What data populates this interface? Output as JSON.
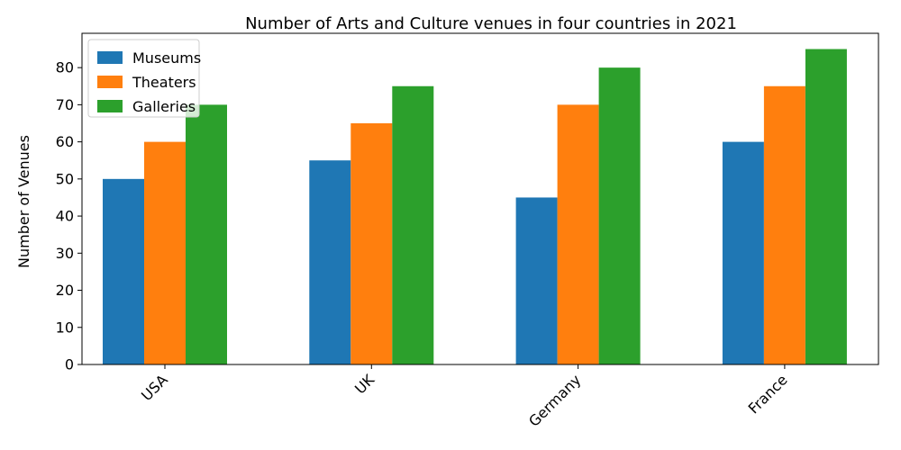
{
  "chart_data": {
    "type": "bar",
    "title": "Number of Arts and Culture venues in four countries in 2021",
    "xlabel": "",
    "ylabel": "Number of Venues",
    "categories": [
      "USA",
      "UK",
      "Germany",
      "France"
    ],
    "series": [
      {
        "name": "Museums",
        "values": [
          50,
          55,
          45,
          60
        ],
        "color": "#1f77b4"
      },
      {
        "name": "Theaters",
        "values": [
          60,
          65,
          70,
          75
        ],
        "color": "#ff7f0e"
      },
      {
        "name": "Galleries",
        "values": [
          70,
          75,
          80,
          85
        ],
        "color": "#2ca02c"
      }
    ],
    "ylim": [
      0,
      89.25
    ],
    "yticks": [
      "0",
      "10",
      "20",
      "30",
      "40",
      "50",
      "60",
      "70",
      "80"
    ],
    "grid": false,
    "legend_position": "top-left"
  }
}
